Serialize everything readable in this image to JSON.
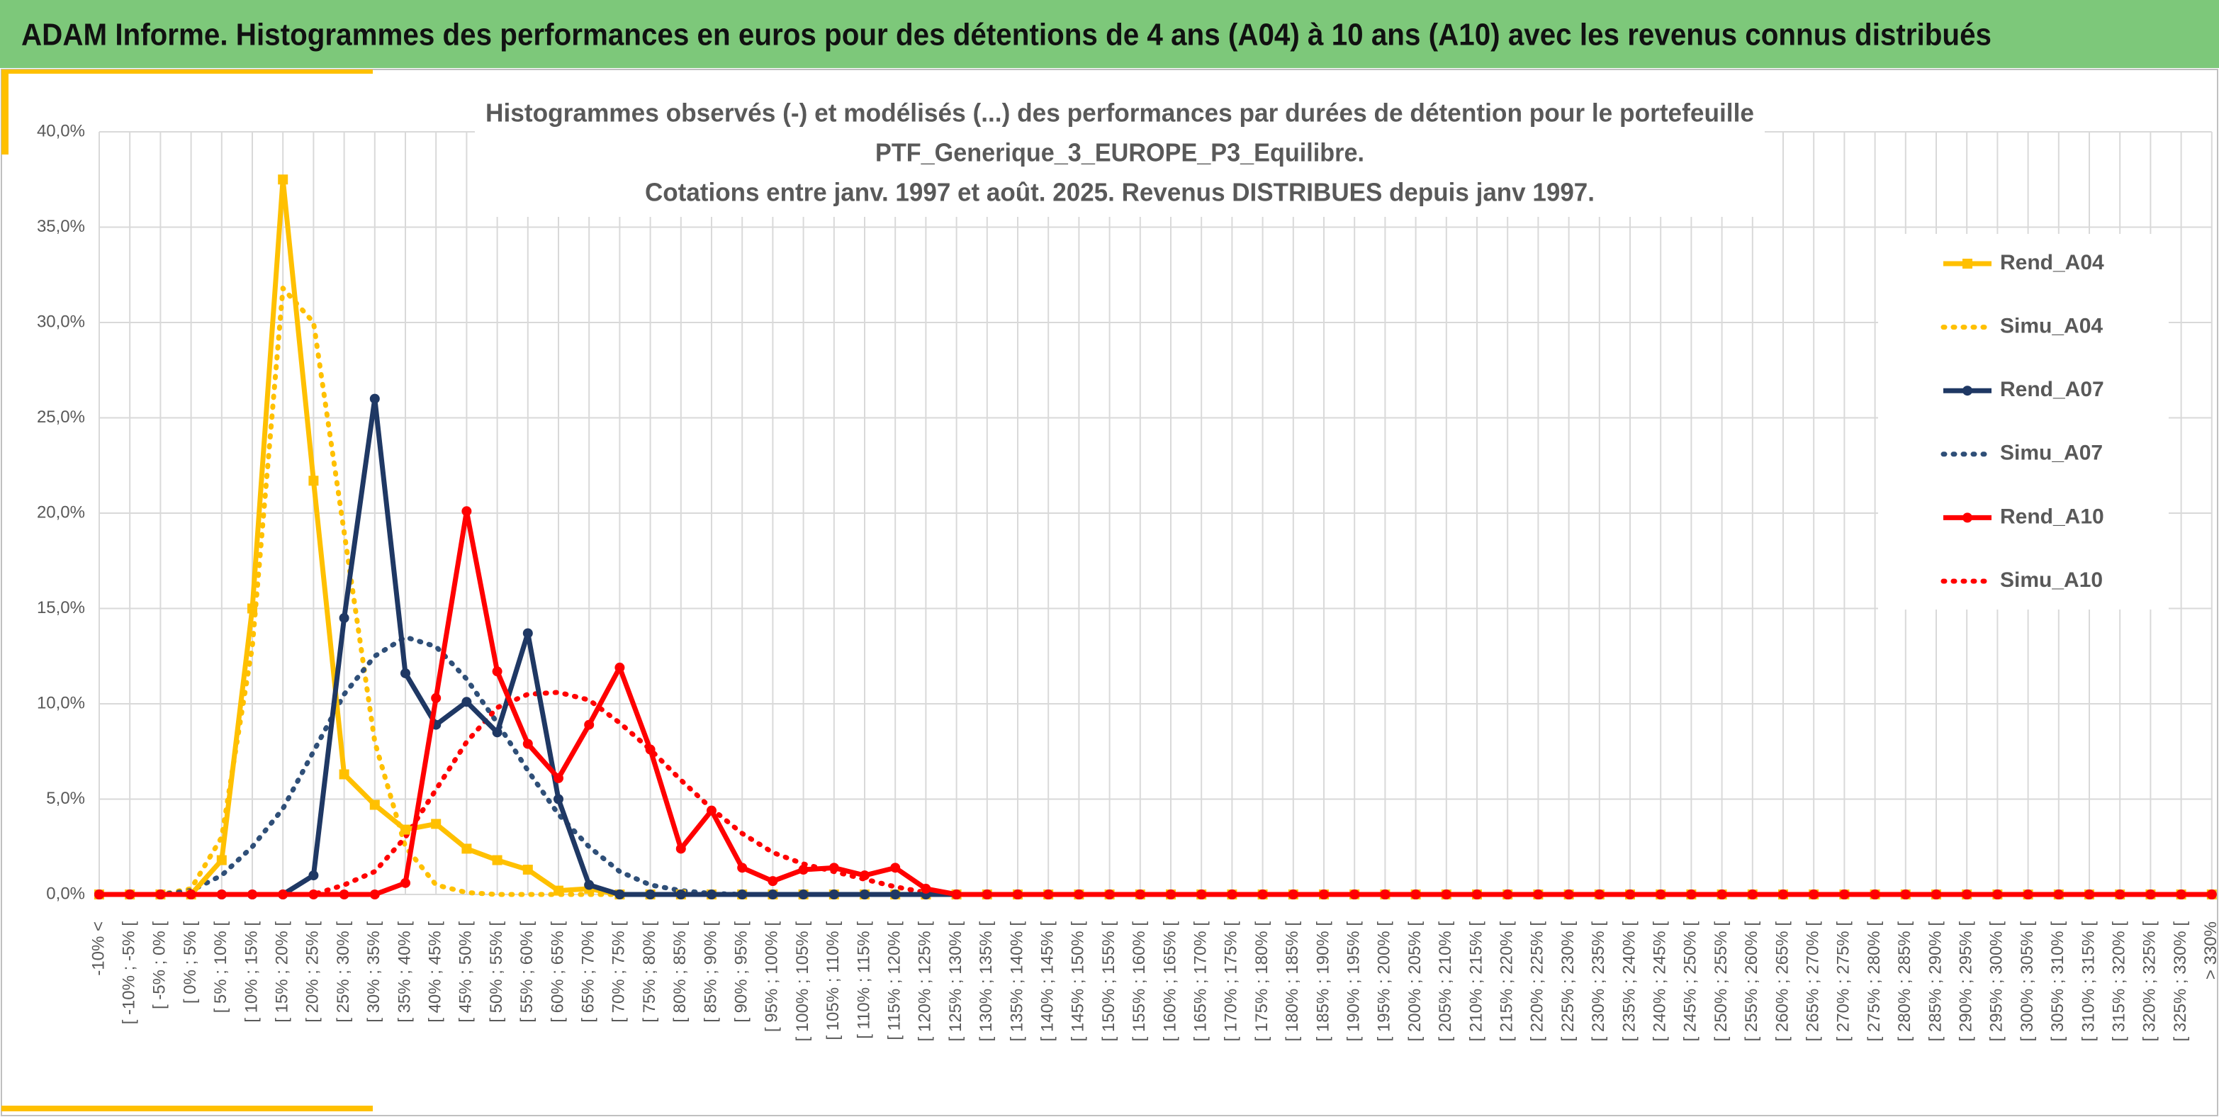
{
  "header": {
    "title": "ADAM Informe. Histogrammes des performances en euros pour des détentions de 4 ans (A04) à 10 ans (A10) avec les revenus connus distribués"
  },
  "chart_data": {
    "type": "line",
    "title": [
      "Histogrammes observés (-) et modélisés (...) des performances par durées de détention pour le portefeuille",
      "PTF_Generique_3_EUROPE_P3_Equilibre.",
      "Cotations entre janv. 1997 et août. 2025. Revenus DISTRIBUES depuis janv 1997."
    ],
    "categories": [
      "-10% <",
      "[ -10% ; -5% [",
      "[ -5% ; 0% [",
      "[ 0% ; 5% [",
      "[ 5% ; 10% [",
      "[ 10% ; 15% [",
      "[ 15% ; 20% [",
      "[ 20% ; 25% [",
      "[ 25% ; 30% [",
      "[ 30% ; 35% [",
      "[ 35% ; 40% [",
      "[ 40% ; 45% [",
      "[ 45% ; 50% [",
      "[ 50% ; 55% [",
      "[ 55% ; 60% [",
      "[ 60% ; 65% [",
      "[ 65% ; 70% [",
      "[ 70% ; 75% [",
      "[ 75% ; 80% [",
      "[ 80% ; 85% [",
      "[ 85% ; 90% [",
      "[ 90% ; 95% [",
      "[ 95% ; 100% [",
      "[ 100% ; 105% [",
      "[ 105% ; 110% [",
      "[ 110% ; 115% [",
      "[ 115% ; 120% [",
      "[ 120% ; 125% [",
      "[ 125% ; 130% [",
      "[ 130% ; 135% [",
      "[ 135% ; 140% [",
      "[ 140% ; 145% [",
      "[ 145% ; 150% [",
      "[ 150% ; 155% [",
      "[ 155% ; 160% [",
      "[ 160% ; 165% [",
      "[ 165% ; 170% [",
      "[ 170% ; 175% [",
      "[ 175% ; 180% [",
      "[ 180% ; 185% [",
      "[ 185% ; 190% [",
      "[ 190% ; 195% [",
      "[ 195% ; 200% [",
      "[ 200% ; 205% [",
      "[ 205% ; 210% [",
      "[ 210% ; 215% [",
      "[ 215% ; 220% [",
      "[ 220% ; 225% [",
      "[ 225% ; 230% [",
      "[ 230% ; 235% [",
      "[ 235% ; 240% [",
      "[ 240% ; 245% [",
      "[ 245% ; 250% [",
      "[ 250% ; 255% [",
      "[ 255% ; 260% [",
      "[ 260% ; 265% [",
      "[ 265% ; 270% [",
      "[ 270% ; 275% [",
      "[ 275% ; 280% [",
      "[ 280% ; 285% [",
      "[ 285% ; 290% [",
      "[ 290% ; 295% [",
      "[ 295% ; 300% [",
      "[ 300% ; 305% [",
      "[ 305% ; 310% [",
      "[ 310% ; 315% [",
      "[ 315% ; 320% [",
      "[ 320% ; 325% [",
      "[ 325% ; 330% [",
      "> 330%"
    ],
    "series": [
      {
        "name": "Rend_A04",
        "color": "#ffc000",
        "style": "solid",
        "marker": "square",
        "values": [
          0,
          0,
          0,
          0,
          1.8,
          15.0,
          37.5,
          21.7,
          6.3,
          4.7,
          3.4,
          3.7,
          2.4,
          1.8,
          1.3,
          0.2,
          0.3,
          0,
          0,
          0,
          0,
          0,
          0,
          0,
          0,
          0,
          0,
          0,
          0,
          0,
          0,
          0,
          0,
          0,
          0,
          0,
          0,
          0,
          0,
          0,
          0,
          0,
          0,
          0,
          0,
          0,
          0,
          0,
          0,
          0,
          0,
          0,
          0,
          0,
          0,
          0,
          0,
          0,
          0,
          0,
          0,
          0,
          0,
          0,
          0,
          0,
          0,
          0,
          0,
          0
        ]
      },
      {
        "name": "Simu_A04",
        "color": "#ffc000",
        "style": "dotted",
        "marker": "none",
        "values": [
          0,
          0,
          0,
          0.3,
          3,
          13,
          31.8,
          30,
          19,
          8,
          2.5,
          0.5,
          0.1,
          0,
          0,
          0,
          0,
          0,
          0,
          0,
          0,
          0,
          0,
          0,
          0,
          0,
          0,
          0,
          0,
          0,
          0,
          0,
          0,
          0,
          0,
          0,
          0,
          0,
          0,
          0,
          0,
          0,
          0,
          0,
          0,
          0,
          0,
          0,
          0,
          0,
          0,
          0,
          0,
          0,
          0,
          0,
          0,
          0,
          0,
          0,
          0,
          0,
          0,
          0,
          0,
          0,
          0,
          0,
          0,
          0
        ]
      },
      {
        "name": "Rend_A07",
        "color": "#1f3864",
        "style": "solid",
        "marker": "circle",
        "values": [
          0,
          0,
          0,
          0,
          0,
          0,
          0,
          1.0,
          14.5,
          26.0,
          11.6,
          8.9,
          10.1,
          8.5,
          13.7,
          5.0,
          0.5,
          0,
          0,
          0,
          0,
          0,
          0,
          0,
          0,
          0,
          0,
          0,
          0,
          0,
          0,
          0,
          0,
          0,
          0,
          0,
          0,
          0,
          0,
          0,
          0,
          0,
          0,
          0,
          0,
          0,
          0,
          0,
          0,
          0,
          0,
          0,
          0,
          0,
          0,
          0,
          0,
          0,
          0,
          0,
          0,
          0,
          0,
          0,
          0,
          0,
          0,
          0,
          0,
          0
        ]
      },
      {
        "name": "Simu_A07",
        "color": "#2f4f78",
        "style": "dotted",
        "marker": "none",
        "values": [
          0,
          0,
          0,
          0.2,
          1,
          2.5,
          4.5,
          7.5,
          10.5,
          12.5,
          13.5,
          13,
          11.3,
          9,
          6.5,
          4.2,
          2.5,
          1.2,
          0.5,
          0.2,
          0.05,
          0,
          0,
          0,
          0,
          0,
          0,
          0,
          0,
          0,
          0,
          0,
          0,
          0,
          0,
          0,
          0,
          0,
          0,
          0,
          0,
          0,
          0,
          0,
          0,
          0,
          0,
          0,
          0,
          0,
          0,
          0,
          0,
          0,
          0,
          0,
          0,
          0,
          0,
          0,
          0,
          0,
          0,
          0,
          0,
          0,
          0,
          0,
          0,
          0
        ]
      },
      {
        "name": "Rend_A10",
        "color": "#ff0000",
        "style": "solid",
        "marker": "circle",
        "values": [
          0,
          0,
          0,
          0,
          0,
          0,
          0,
          0,
          0,
          0,
          0.6,
          10.3,
          20.1,
          11.7,
          7.9,
          6.1,
          8.9,
          11.9,
          7.6,
          2.4,
          4.4,
          1.4,
          0.7,
          1.3,
          1.4,
          1.0,
          1.4,
          0.3,
          0,
          0,
          0,
          0,
          0,
          0,
          0,
          0,
          0,
          0,
          0,
          0,
          0,
          0,
          0,
          0,
          0,
          0,
          0,
          0,
          0,
          0,
          0,
          0,
          0,
          0,
          0,
          0,
          0,
          0,
          0,
          0,
          0,
          0,
          0,
          0,
          0,
          0,
          0,
          0,
          0,
          0
        ]
      },
      {
        "name": "Simu_A10",
        "color": "#ff0000",
        "style": "dotted",
        "marker": "none",
        "values": [
          0,
          0,
          0,
          0,
          0,
          0,
          0,
          0,
          0.5,
          1.2,
          3,
          5.5,
          8,
          9.8,
          10.5,
          10.6,
          10.2,
          9,
          7.6,
          6,
          4.5,
          3.2,
          2.2,
          1.6,
          1.2,
          0.8,
          0.4,
          0.1,
          0,
          0,
          0,
          0,
          0,
          0,
          0,
          0,
          0,
          0,
          0,
          0,
          0,
          0,
          0,
          0,
          0,
          0,
          0,
          0,
          0,
          0,
          0,
          0,
          0,
          0,
          0,
          0,
          0,
          0,
          0,
          0,
          0,
          0,
          0,
          0,
          0,
          0,
          0,
          0,
          0,
          0
        ]
      }
    ],
    "ylim": [
      0,
      40
    ],
    "yticks": [
      {
        "value": 0,
        "label": "0,0%"
      },
      {
        "value": 5,
        "label": "5,0%"
      },
      {
        "value": 10,
        "label": "10,0%"
      },
      {
        "value": 15,
        "label": "15,0%"
      },
      {
        "value": 20,
        "label": "20,0%"
      },
      {
        "value": 25,
        "label": "25,0%"
      },
      {
        "value": 30,
        "label": "30,0%"
      },
      {
        "value": 35,
        "label": "35,0%"
      },
      {
        "value": 40,
        "label": "40,0%"
      }
    ],
    "grid": true,
    "legend": "right"
  }
}
